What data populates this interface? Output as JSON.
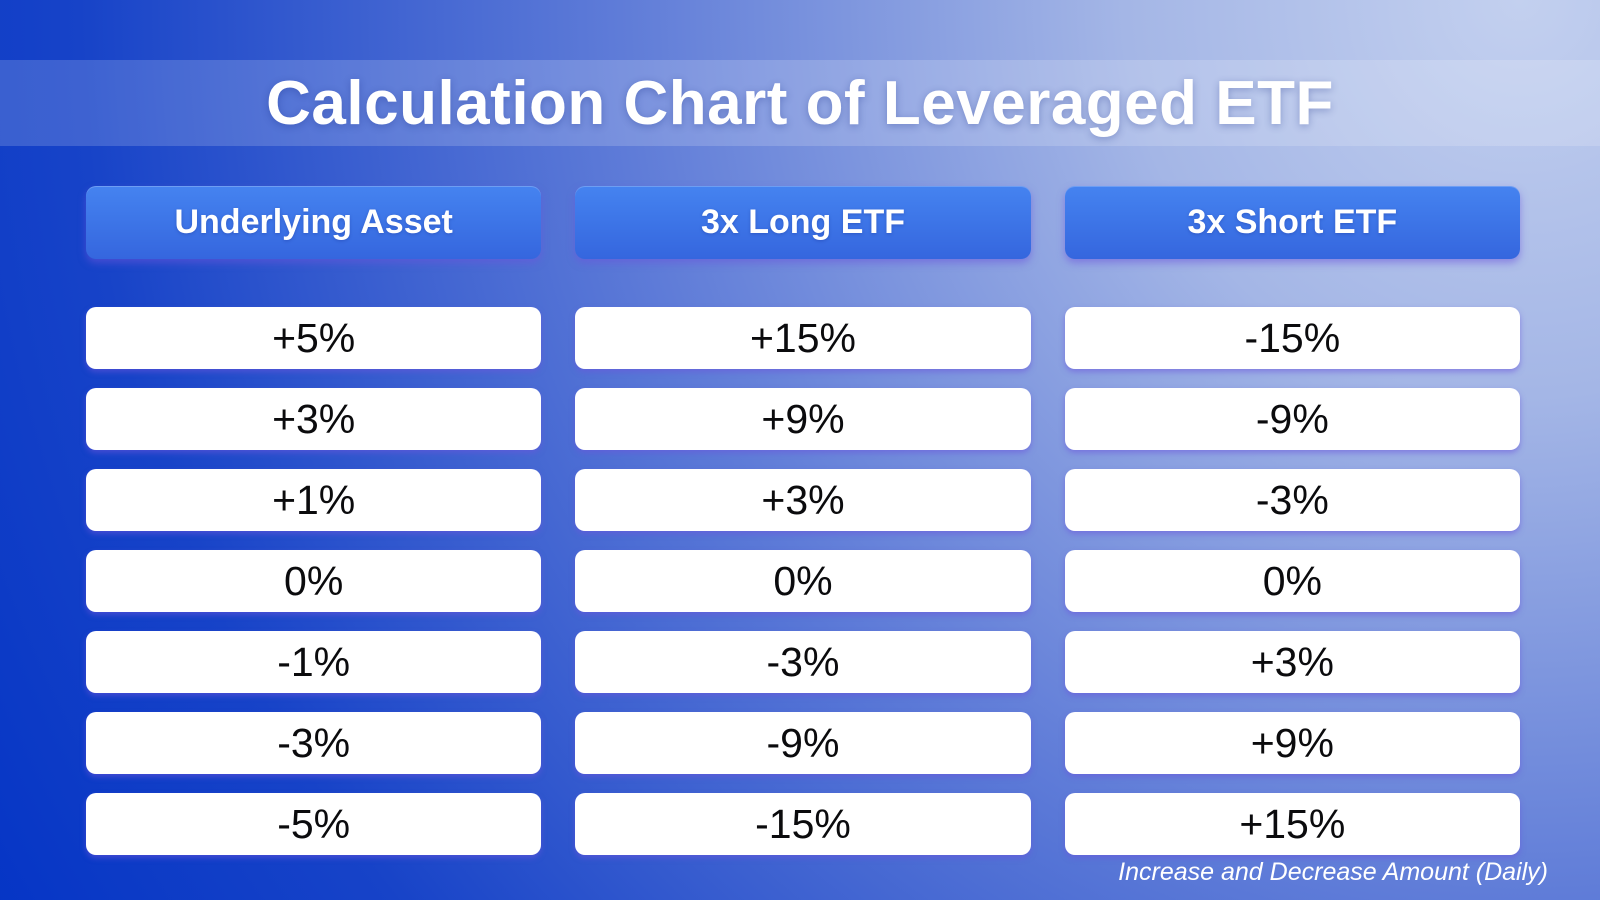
{
  "title": "Calculation Chart of Leveraged ETF",
  "footer_note": "Increase and Decrease Amount (Daily)",
  "chart_data": {
    "type": "table",
    "title": "Calculation Chart of Leveraged ETF",
    "columns": [
      "Underlying Asset",
      "3x Long ETF",
      "3x Short ETF"
    ],
    "rows": [
      [
        "+5%",
        "+15%",
        "-15%"
      ],
      [
        "+3%",
        "+9%",
        "-9%"
      ],
      [
        "+1%",
        "+3%",
        "-3%"
      ],
      [
        "0%",
        "0%",
        "0%"
      ],
      [
        "-1%",
        "-3%",
        "+3%"
      ],
      [
        "-3%",
        "-9%",
        "+9%"
      ],
      [
        "-5%",
        "-15%",
        "+15%"
      ]
    ],
    "note": "Increase and Decrease Amount (Daily)",
    "layout_hints": {
      "legend": "none",
      "grid": "off",
      "orientation": "columns-as-series"
    }
  },
  "colors": {
    "bg_deep": "#0434c5",
    "bg_mid": "#5f7cd8",
    "bg_light": "#c3d0ef",
    "header_blue_top": "#4583f0",
    "header_blue_bottom": "#3566de",
    "cell_white": "#ffffff",
    "shadow_purple": "#6c56dd",
    "text_dark": "#0b0b0d",
    "text_white": "#ffffff"
  }
}
